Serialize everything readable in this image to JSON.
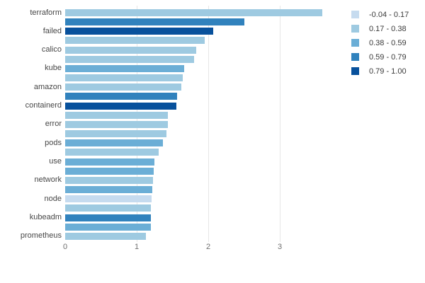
{
  "background_color": "#ffffff",
  "chart_data": {
    "type": "bar",
    "orientation": "horizontal",
    "title": "",
    "xlabel": "",
    "ylabel": "",
    "xlim": [
      0,
      3.75
    ],
    "x_ticks": [
      0,
      1,
      2,
      3
    ],
    "grid": true,
    "gridline_color": "#e6e6e6",
    "category_label_color": "#464646",
    "tick_label_color": "#6e6e6e",
    "legend": {
      "position": "top-right",
      "entries": [
        {
          "label": "-0.04 - 0.17",
          "color": "#c6dbef"
        },
        {
          "label": "0.17 - 0.38",
          "color": "#9ecae1"
        },
        {
          "label": "0.38 - 0.59",
          "color": "#6baed6"
        },
        {
          "label": "0.59 - 0.79",
          "color": "#3182bd"
        },
        {
          "label": "0.79 - 1.00",
          "color": "#08519c"
        }
      ]
    },
    "bars": [
      {
        "label": "terraform",
        "value": 3.59,
        "bucket": "0.17 - 0.38",
        "color": "#9ecae1"
      },
      {
        "label": "",
        "value": 2.5,
        "bucket": "0.59 - 0.79",
        "color": "#3182bd"
      },
      {
        "label": "failed",
        "value": 2.07,
        "bucket": "0.79 - 1.00",
        "color": "#08519c"
      },
      {
        "label": "",
        "value": 1.95,
        "bucket": "0.17 - 0.38",
        "color": "#9ecae1"
      },
      {
        "label": "calico",
        "value": 1.83,
        "bucket": "0.17 - 0.38",
        "color": "#9ecae1"
      },
      {
        "label": "",
        "value": 1.8,
        "bucket": "0.17 - 0.38",
        "color": "#9ecae1"
      },
      {
        "label": "kube",
        "value": 1.66,
        "bucket": "0.38 - 0.59",
        "color": "#6baed6"
      },
      {
        "label": "",
        "value": 1.64,
        "bucket": "0.17 - 0.38",
        "color": "#9ecae1"
      },
      {
        "label": "amazon",
        "value": 1.62,
        "bucket": "0.17 - 0.38",
        "color": "#9ecae1"
      },
      {
        "label": "",
        "value": 1.56,
        "bucket": "0.59 - 0.79",
        "color": "#3182bd"
      },
      {
        "label": "containerd",
        "value": 1.55,
        "bucket": "0.79 - 1.00",
        "color": "#08519c"
      },
      {
        "label": "",
        "value": 1.44,
        "bucket": "0.17 - 0.38",
        "color": "#9ecae1"
      },
      {
        "label": "error",
        "value": 1.44,
        "bucket": "0.17 - 0.38",
        "color": "#9ecae1"
      },
      {
        "label": "",
        "value": 1.42,
        "bucket": "0.17 - 0.38",
        "color": "#9ecae1"
      },
      {
        "label": "pods",
        "value": 1.37,
        "bucket": "0.38 - 0.59",
        "color": "#6baed6"
      },
      {
        "label": "",
        "value": 1.31,
        "bucket": "0.17 - 0.38",
        "color": "#9ecae1"
      },
      {
        "label": "use",
        "value": 1.25,
        "bucket": "0.38 - 0.59",
        "color": "#6baed6"
      },
      {
        "label": "",
        "value": 1.24,
        "bucket": "0.38 - 0.59",
        "color": "#6baed6"
      },
      {
        "label": "network",
        "value": 1.23,
        "bucket": "0.17 - 0.38",
        "color": "#9ecae1"
      },
      {
        "label": "",
        "value": 1.22,
        "bucket": "0.38 - 0.59",
        "color": "#6baed6"
      },
      {
        "label": "node",
        "value": 1.21,
        "bucket": "-0.04 - 0.17",
        "color": "#c6dbef"
      },
      {
        "label": "",
        "value": 1.2,
        "bucket": "0.17 - 0.38",
        "color": "#9ecae1"
      },
      {
        "label": "kubeadm",
        "value": 1.2,
        "bucket": "0.59 - 0.79",
        "color": "#3182bd"
      },
      {
        "label": "",
        "value": 1.2,
        "bucket": "0.38 - 0.59",
        "color": "#6baed6"
      },
      {
        "label": "prometheus",
        "value": 1.13,
        "bucket": "0.17 - 0.38",
        "color": "#9ecae1"
      }
    ]
  }
}
